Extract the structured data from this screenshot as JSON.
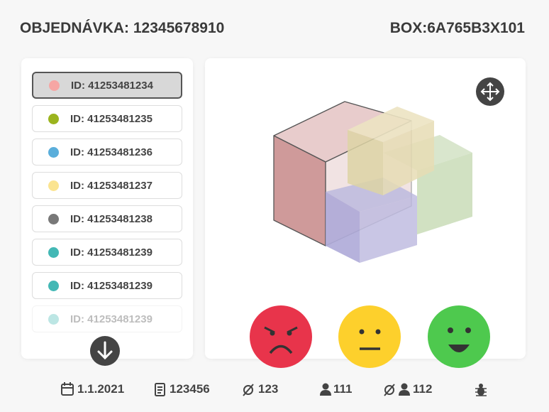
{
  "header": {
    "order": "OBJEDNÁVKA: 12345678910",
    "box": "BOX:6A765B3X101"
  },
  "items": [
    {
      "id": "ID: 41253481234",
      "color": "#f6a6a4",
      "selected": true
    },
    {
      "id": "ID: 41253481235",
      "color": "#9bb41e",
      "selected": false
    },
    {
      "id": "ID: 41253481236",
      "color": "#5aaedb",
      "selected": false
    },
    {
      "id": "ID: 41253481237",
      "color": "#fbe490",
      "selected": false
    },
    {
      "id": "ID: 41253481238",
      "color": "#787878",
      "selected": false
    },
    {
      "id": "ID: 41253481239",
      "color": "#43b8b5",
      "selected": false
    },
    {
      "id": "ID: 41253481239",
      "color": "#43b8b5",
      "selected": false
    },
    {
      "id": "ID: 41253481239",
      "color": "#43b8b5",
      "selected": false
    }
  ],
  "footer": {
    "date": "1.1.2021",
    "document": "123456",
    "diameter": "123",
    "persons": "111",
    "no_persons": "112"
  }
}
